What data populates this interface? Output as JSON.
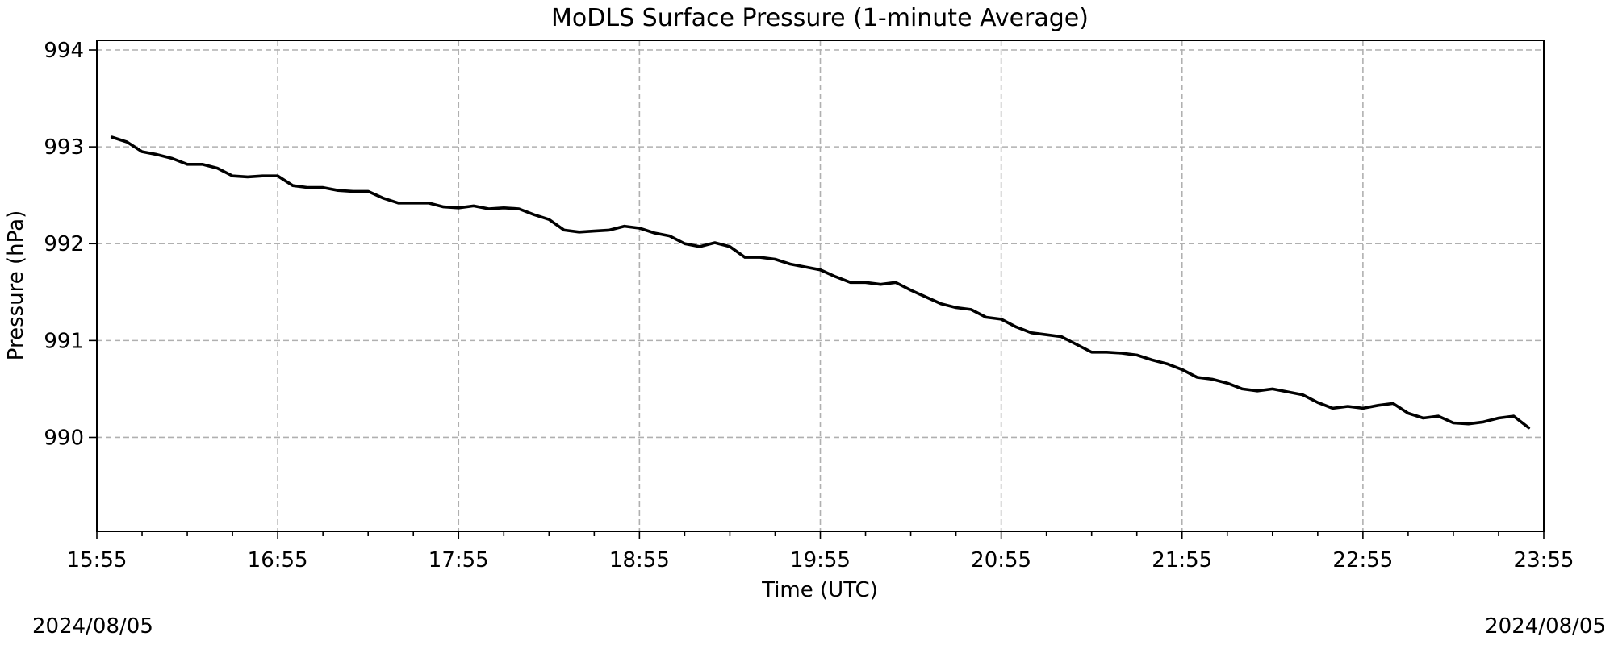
{
  "chart_data": {
    "type": "line",
    "title": "MoDLS Surface Pressure (1-minute Average)",
    "xlabel": "Time (UTC)",
    "ylabel": "Pressure (hPa)",
    "xlim": [
      "2024-08-05 15:55",
      "2024-08-05 23:55"
    ],
    "ylim": [
      989.03,
      994.1
    ],
    "x_ticks": [
      "15:55",
      "16:55",
      "17:55",
      "18:55",
      "19:55",
      "20:55",
      "21:55",
      "22:55",
      "23:55"
    ],
    "y_ticks": [
      "990",
      "991",
      "992",
      "993",
      "994"
    ],
    "minor_x_tick_interval_minutes": 15,
    "grid": true,
    "line_color": "#000000",
    "date_left": "2024/08/05",
    "date_right": "2024/08/05",
    "series": [
      {
        "x": [
          "16:00",
          "16:05",
          "16:10",
          "16:15",
          "16:20",
          "16:25",
          "16:30",
          "16:35",
          "16:40",
          "16:45",
          "16:50",
          "16:55",
          "17:00",
          "17:05",
          "17:10",
          "17:15",
          "17:20",
          "17:25",
          "17:30",
          "17:35",
          "17:40",
          "17:45",
          "17:50",
          "17:55",
          "18:00",
          "18:05",
          "18:10",
          "18:15",
          "18:20",
          "18:25",
          "18:30",
          "18:35",
          "18:40",
          "18:45",
          "18:50",
          "18:55",
          "19:00",
          "19:05",
          "19:10",
          "19:15",
          "19:20",
          "19:25",
          "19:30",
          "19:35",
          "19:40",
          "19:45",
          "19:50",
          "19:55",
          "20:00",
          "20:05",
          "20:10",
          "20:15",
          "20:20",
          "20:25",
          "20:30",
          "20:35",
          "20:40",
          "20:45",
          "20:50",
          "20:55",
          "21:00",
          "21:05",
          "21:10",
          "21:15",
          "21:20",
          "21:25",
          "21:30",
          "21:35",
          "21:40",
          "21:45",
          "21:50",
          "21:55",
          "22:00",
          "22:05",
          "22:10",
          "22:15",
          "22:20",
          "22:25",
          "22:30",
          "22:35",
          "22:40",
          "22:45",
          "22:50",
          "22:55",
          "23:00",
          "23:05",
          "23:10",
          "23:15",
          "23:20",
          "23:25",
          "23:30",
          "23:35",
          "23:40",
          "23:45",
          "23:50"
        ],
        "values": [
          993.1,
          993.05,
          992.95,
          992.92,
          992.88,
          992.82,
          992.82,
          992.78,
          992.7,
          992.69,
          992.7,
          992.7,
          992.6,
          992.58,
          992.58,
          992.55,
          992.54,
          992.54,
          992.47,
          992.42,
          992.42,
          992.42,
          992.38,
          992.37,
          992.39,
          992.36,
          992.37,
          992.36,
          992.3,
          992.25,
          992.14,
          992.12,
          992.13,
          992.14,
          992.18,
          992.16,
          992.11,
          992.08,
          992.0,
          991.97,
          992.01,
          991.97,
          991.86,
          991.86,
          991.84,
          991.79,
          991.76,
          991.73,
          991.66,
          991.6,
          991.6,
          991.58,
          991.6,
          991.52,
          991.45,
          991.38,
          991.34,
          991.32,
          991.24,
          991.22,
          991.14,
          991.08,
          991.06,
          991.04,
          990.96,
          990.88,
          990.88,
          990.87,
          990.85,
          990.8,
          990.76,
          990.7,
          990.62,
          990.6,
          990.56,
          990.5,
          990.48,
          990.5,
          990.47,
          990.44,
          990.36,
          990.3,
          990.32,
          990.3,
          990.33,
          990.35,
          990.25,
          990.2,
          990.22,
          990.15,
          990.14,
          990.16,
          990.2,
          990.22,
          990.1
        ]
      }
    ]
  }
}
